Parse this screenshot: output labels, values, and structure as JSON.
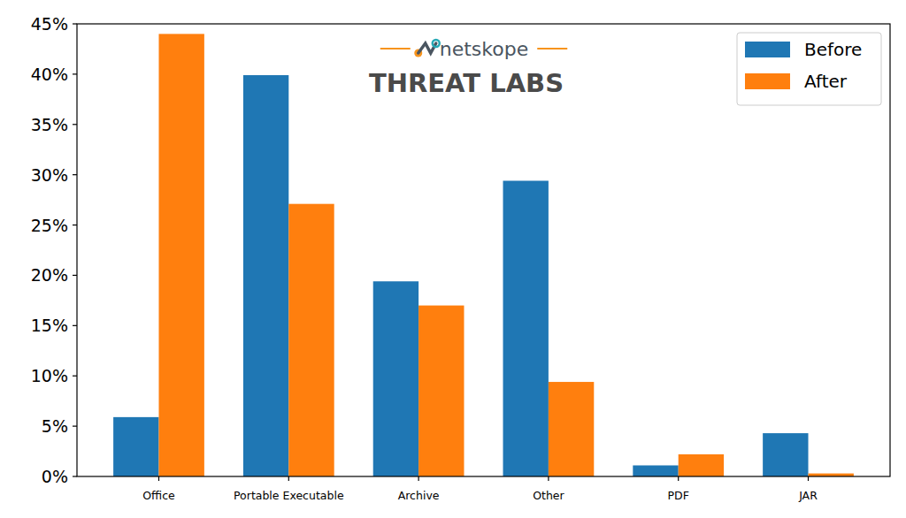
{
  "chart_data": {
    "type": "bar",
    "annotations": [
      "netskope",
      "THREAT LABS"
    ],
    "categories": [
      "Office",
      "Portable Executable",
      "Archive",
      "Other",
      "PDF",
      "JAR"
    ],
    "series": [
      {
        "name": "Before",
        "color": "#1f77b4",
        "values": [
          5.9,
          39.9,
          19.4,
          29.4,
          1.1,
          4.3
        ]
      },
      {
        "name": "After",
        "color": "#ff7f0e",
        "values": [
          44.0,
          27.1,
          17.0,
          9.4,
          2.2,
          0.3
        ]
      }
    ],
    "ylim": [
      0,
      45
    ],
    "yticks": [
      {
        "value": 0,
        "label": "0%"
      },
      {
        "value": 5,
        "label": "5%"
      },
      {
        "value": 10,
        "label": "10%"
      },
      {
        "value": 15,
        "label": "15%"
      },
      {
        "value": 20,
        "label": "20%"
      },
      {
        "value": 25,
        "label": "25%"
      },
      {
        "value": 30,
        "label": "30%"
      },
      {
        "value": 35,
        "label": "35%"
      },
      {
        "value": 40,
        "label": "40%"
      },
      {
        "value": 45,
        "label": "45%"
      }
    ],
    "grid": false,
    "legend": "upper right"
  }
}
